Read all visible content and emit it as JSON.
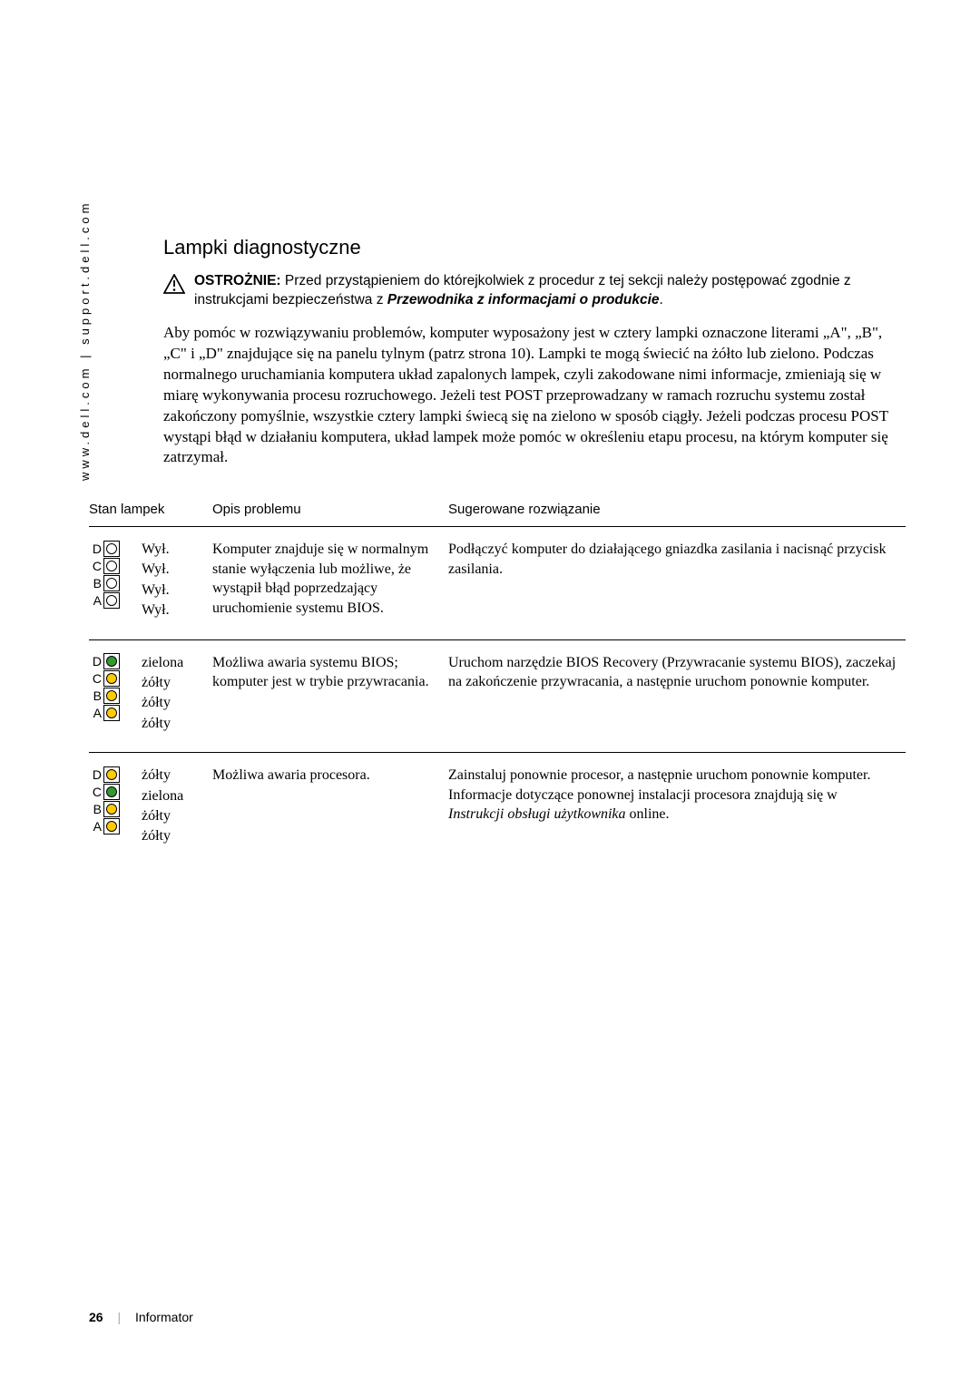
{
  "sidebar": {
    "text": "www.dell.com | support.dell.com"
  },
  "heading": "Lampki diagnostyczne",
  "warning": {
    "prefix": "OSTROŻNIE: ",
    "line1": "Przed przystąpieniem do którejkolwiek z procedur z tej sekcji należy postępować zgodnie z instrukcjami bezpieczeństwa z ",
    "emph": "Przewodnika z informacjami o produkcie",
    "suffix": "."
  },
  "body_paragraph": "Aby pomóc w rozwiązywaniu problemów, komputer wyposażony jest w cztery lampki oznaczone literami „A\", „B\", „C\" i „D\" znajdujące się na panelu tylnym (patrz strona 10). Lampki te mogą świecić na żółto lub zielono. Podczas normalnego uruchamiania komputera układ zapalonych lampek, czyli zakodowane nimi informacje, zmieniają się w miarę wykonywania procesu rozruchowego. Jeżeli test POST przeprowadzany w ramach rozruchu systemu został zakończony pomyślnie, wszystkie cztery lampki świecą się na zielono w sposób ciągły. Jeżeli podczas procesu POST wystąpi błąd w działaniu komputera, układ lampek może pomóc w określeniu etapu procesu, na którym komputer się zatrzymał.",
  "table": {
    "headers": {
      "state": "Stan lampek",
      "desc": "Opis problemu",
      "action": "Sugerowane rozwiązanie"
    },
    "lamp_labels": [
      "D",
      "C",
      "B",
      "A"
    ],
    "colors": {
      "off": "#ffffff",
      "yellow": "#ffcc00",
      "green": "#339933"
    },
    "rows": [
      {
        "lamps": [
          "off",
          "off",
          "off",
          "off"
        ],
        "states": [
          "Wył.",
          "Wył.",
          "Wył.",
          "Wył."
        ],
        "desc": "Komputer znajduje się w normalnym stanie wyłączenia lub możliwe, że wystąpił błąd poprzedzający uruchomienie systemu BIOS.",
        "action_plain": "Podłączyć komputer do działającego gniazdka zasilania i nacisnąć przycisk zasilania.",
        "action_italic": ""
      },
      {
        "lamps": [
          "green",
          "yellow",
          "yellow",
          "yellow"
        ],
        "states": [
          "zielona",
          "żółty",
          "żółty",
          "żółty"
        ],
        "desc": "Możliwa awaria systemu BIOS; komputer jest w trybie przywracania.",
        "action_plain": "Uruchom narzędzie BIOS Recovery (Przywracanie systemu BIOS), zaczekaj na zakończenie przywracania, a następnie uruchom ponownie komputer.",
        "action_italic": ""
      },
      {
        "lamps": [
          "yellow",
          "green",
          "yellow",
          "yellow"
        ],
        "states": [
          "żółty",
          "zielona",
          "żółty",
          "żółty"
        ],
        "desc": "Możliwa awaria procesora.",
        "action_plain": "Zainstaluj ponownie procesor, a następnie uruchom ponownie komputer. Informacje dotyczące ponownej instalacji procesora znajdują się w ",
        "action_italic": "Instrukcji obsługi użytkownika",
        "action_suffix": " online."
      }
    ]
  },
  "footer": {
    "page_number": "26",
    "label": "Informator"
  }
}
